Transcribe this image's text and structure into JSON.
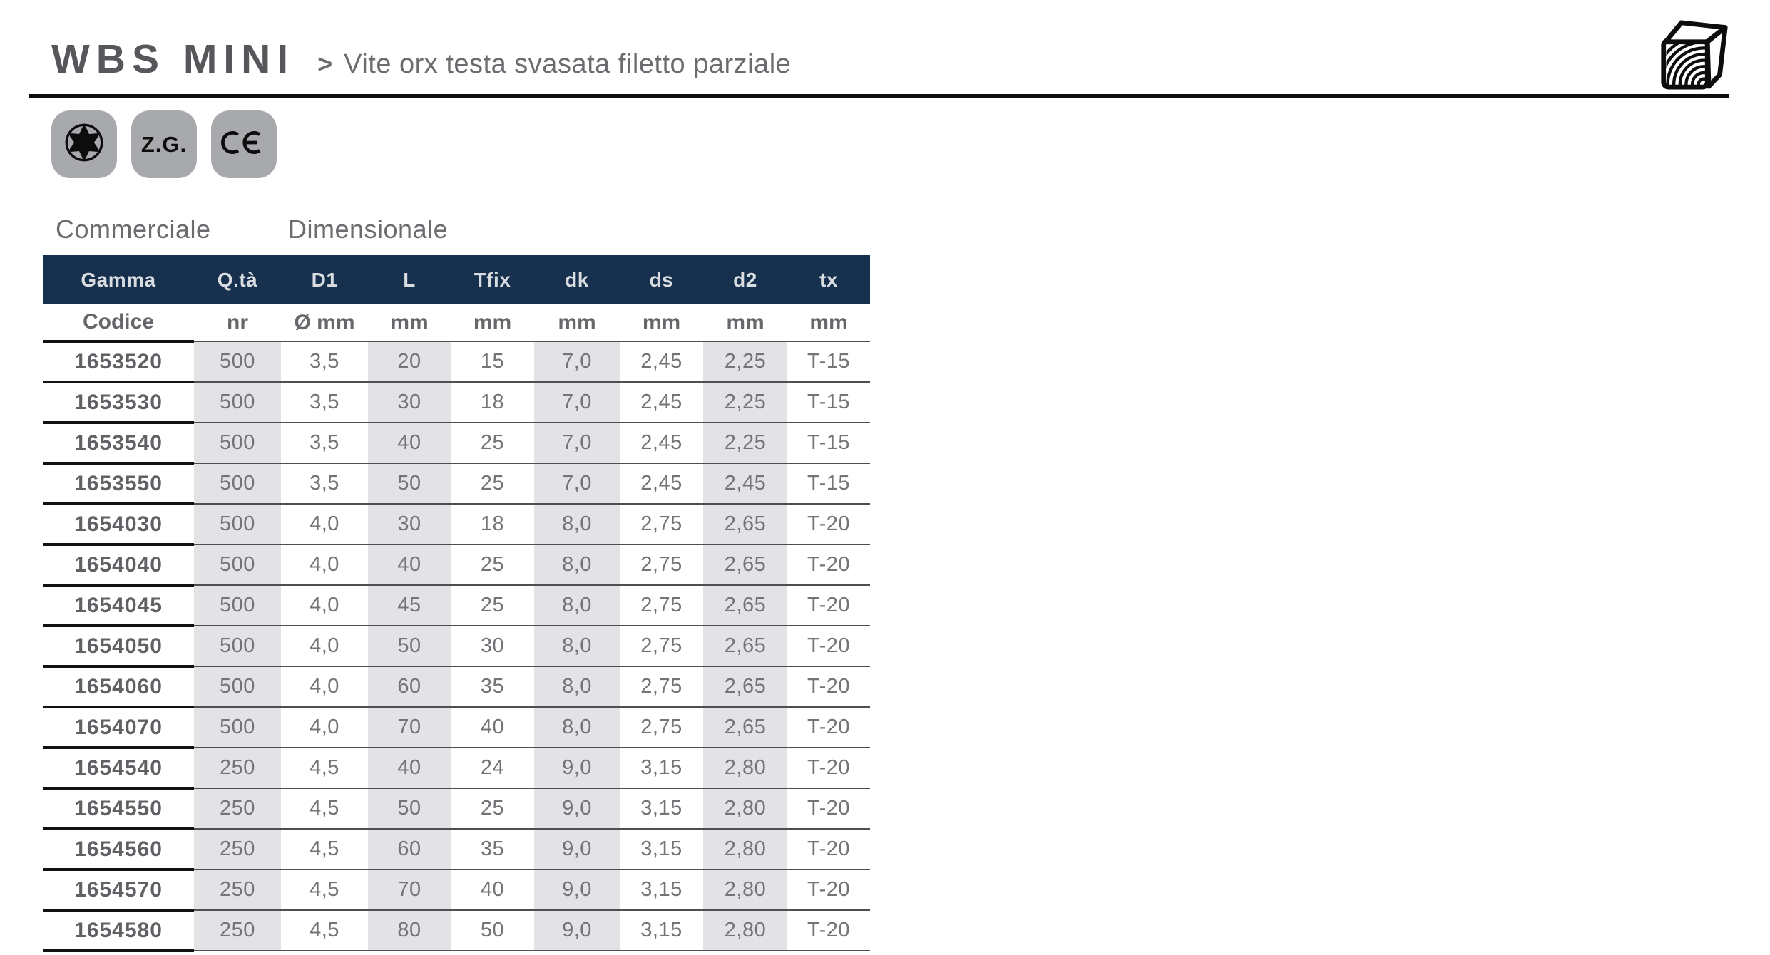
{
  "header": {
    "title": "WBS MINI",
    "breadcrumb_arrow": ">",
    "breadcrumb": "Vite orx testa svasata filetto parziale"
  },
  "badges": {
    "torx_icon": "torx-star-icon",
    "zg": "Z.G.",
    "ce_icon": "ce-mark-icon"
  },
  "corner_icon": "wood-block-icon",
  "sections": {
    "commercial": "Commerciale",
    "dimensional": "Dimensionale"
  },
  "table": {
    "columns": [
      "Gamma",
      "Q.tà",
      "D1",
      "L",
      "Tfix",
      "dk",
      "ds",
      "d2",
      "tx"
    ],
    "units": [
      "Codice",
      "nr",
      "Ø mm",
      "mm",
      "mm",
      "mm",
      "mm",
      "mm",
      "mm"
    ],
    "rows": [
      [
        "1653520",
        "500",
        "3,5",
        "20",
        "15",
        "7,0",
        "2,45",
        "2,25",
        "T-15"
      ],
      [
        "1653530",
        "500",
        "3,5",
        "30",
        "18",
        "7,0",
        "2,45",
        "2,25",
        "T-15"
      ],
      [
        "1653540",
        "500",
        "3,5",
        "40",
        "25",
        "7,0",
        "2,45",
        "2,25",
        "T-15"
      ],
      [
        "1653550",
        "500",
        "3,5",
        "50",
        "25",
        "7,0",
        "2,45",
        "2,45",
        "T-15"
      ],
      [
        "1654030",
        "500",
        "4,0",
        "30",
        "18",
        "8,0",
        "2,75",
        "2,65",
        "T-20"
      ],
      [
        "1654040",
        "500",
        "4,0",
        "40",
        "25",
        "8,0",
        "2,75",
        "2,65",
        "T-20"
      ],
      [
        "1654045",
        "500",
        "4,0",
        "45",
        "25",
        "8,0",
        "2,75",
        "2,65",
        "T-20"
      ],
      [
        "1654050",
        "500",
        "4,0",
        "50",
        "30",
        "8,0",
        "2,75",
        "2,65",
        "T-20"
      ],
      [
        "1654060",
        "500",
        "4,0",
        "60",
        "35",
        "8,0",
        "2,75",
        "2,65",
        "T-20"
      ],
      [
        "1654070",
        "500",
        "4,0",
        "70",
        "40",
        "8,0",
        "2,75",
        "2,65",
        "T-20"
      ],
      [
        "1654540",
        "250",
        "4,5",
        "40",
        "24",
        "9,0",
        "3,15",
        "2,80",
        "T-20"
      ],
      [
        "1654550",
        "250",
        "4,5",
        "50",
        "25",
        "9,0",
        "3,15",
        "2,80",
        "T-20"
      ],
      [
        "1654560",
        "250",
        "4,5",
        "60",
        "35",
        "9,0",
        "3,15",
        "2,80",
        "T-20"
      ],
      [
        "1654570",
        "250",
        "4,5",
        "70",
        "40",
        "9,0",
        "3,15",
        "2,80",
        "T-20"
      ],
      [
        "1654580",
        "250",
        "4,5",
        "80",
        "50",
        "9,0",
        "3,15",
        "2,80",
        "T-20"
      ]
    ]
  },
  "colors": {
    "header_navy": "#16304d",
    "column_shade": "#e3e3e5",
    "badge_gray": "#a8a9ad"
  }
}
